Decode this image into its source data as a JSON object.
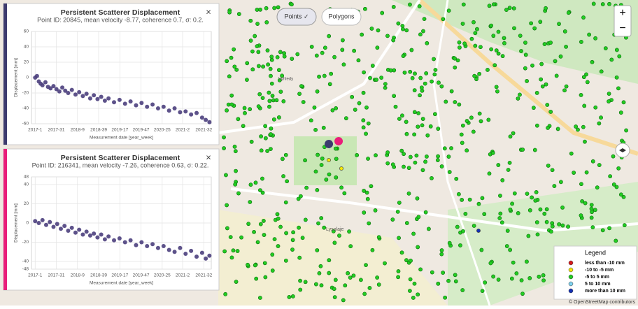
{
  "toggle": {
    "points": "Points ✓",
    "polygons": "Polygons"
  },
  "zoom": {
    "in": "+",
    "out": "−"
  },
  "map_labels": [
    "Vyhledy",
    "Lysolaje"
  ],
  "attribution": "© OpenStreetMap contributors",
  "legend": {
    "title": "Legend",
    "items": [
      {
        "label": "less than -10 mm",
        "color": "#d7191c"
      },
      {
        "label": "-10 to -5 mm",
        "color": "#f5e60a"
      },
      {
        "label": "-5 to 5 mm",
        "color": "#22cc22"
      },
      {
        "label": "5 to 10 mm",
        "color": "#7fd3f0"
      },
      {
        "label": "more than 10 mm",
        "color": "#1430b4"
      }
    ]
  },
  "panels": [
    {
      "close": "×",
      "accent": "#3d3b6e",
      "chart_data": {
        "type": "scatter",
        "title": "Persistent Scatterer Displacement",
        "subtitle": "Point ID: 20845, mean velocity -8.77, coherence 0.7, σ: 0.2.",
        "y_label": "Displacement [mm]",
        "x_label": "Measurement date [year_week]",
        "color": "#4b3f7d",
        "xlim": [
          2016.9,
          2021.8
        ],
        "ylim": [
          -60,
          60
        ],
        "yticks": [
          -60,
          -40,
          -20,
          0,
          20,
          40,
          60
        ],
        "xticks": [
          {
            "value": 2017.0,
            "label": "2017-1"
          },
          {
            "value": 2017.577,
            "label": "2017-31"
          },
          {
            "value": 2018.154,
            "label": "2018-9"
          },
          {
            "value": 2018.731,
            "label": "2018-39"
          },
          {
            "value": 2019.308,
            "label": "2019-17"
          },
          {
            "value": 2019.885,
            "label": "2019-47"
          },
          {
            "value": 2020.462,
            "label": "2020-25"
          },
          {
            "value": 2021.019,
            "label": "2021-2"
          },
          {
            "value": 2021.596,
            "label": "2021-32"
          }
        ],
        "x": [
          2017.0,
          2017.05,
          2017.1,
          2017.15,
          2017.2,
          2017.28,
          2017.35,
          2017.42,
          2017.5,
          2017.58,
          2017.66,
          2017.74,
          2017.82,
          2017.9,
          2018.0,
          2018.1,
          2018.2,
          2018.3,
          2018.4,
          2018.5,
          2018.6,
          2018.7,
          2018.8,
          2018.9,
          2019.0,
          2019.15,
          2019.3,
          2019.45,
          2019.6,
          2019.75,
          2019.9,
          2020.05,
          2020.2,
          2020.35,
          2020.5,
          2020.65,
          2020.8,
          2020.95,
          2021.1,
          2021.25,
          2021.4,
          2021.55,
          2021.65,
          2021.75
        ],
        "values": [
          0,
          2,
          -5,
          -8,
          -10,
          -6,
          -12,
          -14,
          -11,
          -15,
          -18,
          -13,
          -17,
          -20,
          -16,
          -22,
          -19,
          -24,
          -21,
          -27,
          -23,
          -28,
          -25,
          -30,
          -27,
          -32,
          -29,
          -34,
          -31,
          -36,
          -33,
          -38,
          -35,
          -40,
          -38,
          -43,
          -40,
          -45,
          -44,
          -48,
          -46,
          -52,
          -55,
          -58
        ]
      }
    },
    {
      "close": "×",
      "accent": "#e91e7a",
      "chart_data": {
        "type": "scatter",
        "title": "Persistent Scatterer Displacement",
        "subtitle": "Point ID: 216341, mean velocity -7.26, coherence 0.63, σ: 0.22.",
        "y_label": "Displacement [mm]",
        "x_label": "Measurement date [year_week]",
        "color": "#4b3f7d",
        "xlim": [
          2016.9,
          2021.8
        ],
        "ylim": [
          -48,
          48
        ],
        "yticks": [
          -48,
          -40,
          -20,
          0,
          20,
          40,
          48
        ],
        "xticks": [
          {
            "value": 2017.0,
            "label": "2017-1"
          },
          {
            "value": 2017.577,
            "label": "2017-31"
          },
          {
            "value": 2018.154,
            "label": "2018-9"
          },
          {
            "value": 2018.731,
            "label": "2018-39"
          },
          {
            "value": 2019.308,
            "label": "2019-17"
          },
          {
            "value": 2019.885,
            "label": "2019-47"
          },
          {
            "value": 2020.462,
            "label": "2020-25"
          },
          {
            "value": 2021.019,
            "label": "2021-2"
          },
          {
            "value": 2021.596,
            "label": "2021-32"
          }
        ],
        "x": [
          2017.0,
          2017.1,
          2017.2,
          2017.3,
          2017.4,
          2017.5,
          2017.6,
          2017.7,
          2017.8,
          2017.9,
          2018.0,
          2018.1,
          2018.2,
          2018.3,
          2018.4,
          2018.5,
          2018.6,
          2018.7,
          2018.8,
          2018.9,
          2019.0,
          2019.15,
          2019.3,
          2019.45,
          2019.6,
          2019.75,
          2019.9,
          2020.05,
          2020.2,
          2020.35,
          2020.5,
          2020.65,
          2020.8,
          2020.95,
          2021.1,
          2021.25,
          2021.4,
          2021.55,
          2021.65,
          2021.75
        ],
        "values": [
          2,
          0,
          3,
          -2,
          1,
          -4,
          -1,
          -6,
          -3,
          -8,
          -5,
          -10,
          -7,
          -12,
          -9,
          -13,
          -11,
          -15,
          -12,
          -17,
          -14,
          -18,
          -16,
          -20,
          -18,
          -23,
          -20,
          -24,
          -22,
          -26,
          -24,
          -28,
          -30,
          -26,
          -32,
          -29,
          -35,
          -31,
          -37,
          -34
        ]
      }
    }
  ]
}
